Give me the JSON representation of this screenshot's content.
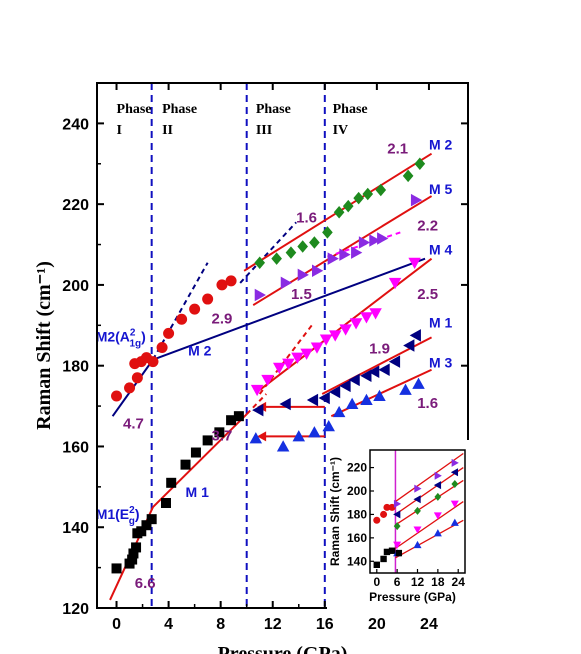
{
  "chart_data": {
    "type": "scatter",
    "xlabel": "Pressure (GPa)",
    "ylabel": "Raman Shift (cm⁻¹)",
    "xlim": [
      -1.5,
      27
    ],
    "ylim": [
      120,
      250
    ],
    "xticks": [
      "0",
      "4",
      "8",
      "12",
      "16",
      "20",
      "24"
    ],
    "yticks": [
      "120",
      "140",
      "160",
      "180",
      "200",
      "220",
      "240"
    ],
    "phase_boundaries": [
      2.7,
      10.0,
      16.0
    ],
    "phases": [
      {
        "name": "Phase",
        "roman": "I",
        "x": 0.0
      },
      {
        "name": "Phase",
        "roman": "II",
        "x": 3.5
      },
      {
        "name": "Phase",
        "roman": "III",
        "x": 10.7
      },
      {
        "name": "Phase",
        "roman": "IV",
        "x": 16.6
      }
    ],
    "series": [
      {
        "name": "M1",
        "marker": "square",
        "color": "#000000",
        "x": [
          0.0,
          1.0,
          1.2,
          1.3,
          1.5,
          1.6,
          1.9,
          2.3,
          2.7,
          3.8,
          4.2,
          5.3,
          6.1,
          7.0,
          7.9,
          8.8,
          9.4
        ],
        "y": [
          129.8,
          131.0,
          132.0,
          133.5,
          135.0,
          138.5,
          139.0,
          140.5,
          142.0,
          146.0,
          151.0,
          155.5,
          158.5,
          161.5,
          163.5,
          166.5,
          167.5
        ]
      },
      {
        "name": "M1",
        "marker": "triangle-left",
        "color": "#000080",
        "x": [
          10.9,
          13.0,
          15.1,
          16.0,
          16.8,
          17.6,
          18.3,
          19.2,
          19.8,
          20.6,
          21.4,
          22.5,
          23.0
        ],
        "y": [
          169.0,
          170.5,
          171.5,
          172.0,
          173.5,
          175.0,
          176.5,
          177.5,
          178.5,
          179.0,
          181.0,
          185.0,
          187.5
        ]
      },
      {
        "name": "M3",
        "marker": "triangle-up",
        "color": "#1530e0",
        "x": [
          10.7,
          12.8,
          14.0,
          15.2,
          16.3,
          17.1,
          18.1,
          19.2,
          20.2,
          22.2,
          23.2
        ],
        "y": [
          162.0,
          160.0,
          162.5,
          163.5,
          165.0,
          168.5,
          170.5,
          171.5,
          172.5,
          174.0,
          175.5
        ]
      },
      {
        "name": "M2",
        "marker": "circle",
        "color": "#e01010",
        "x": [
          0.0,
          1.0,
          1.4,
          1.6,
          1.9,
          2.3,
          2.8,
          3.5,
          4.0,
          5.0,
          6.0,
          7.0,
          8.1,
          8.8
        ],
        "y": [
          172.5,
          174.5,
          180.5,
          177.0,
          181.0,
          182.0,
          181.0,
          184.5,
          188.0,
          191.5,
          194.0,
          196.5,
          200.0,
          201.0
        ]
      },
      {
        "name": "M2",
        "marker": "diamond",
        "color": "#1e8a1e",
        "x": [
          11.0,
          12.3,
          13.4,
          14.3,
          15.2,
          16.2,
          17.1,
          17.8,
          18.6,
          19.3,
          20.3,
          22.4,
          23.3
        ],
        "y": [
          205.5,
          206.5,
          208.0,
          209.5,
          210.5,
          213.0,
          218.0,
          219.5,
          221.5,
          222.5,
          223.5,
          227.0,
          230.0
        ]
      },
      {
        "name": "M5",
        "marker": "triangle-right",
        "color": "#8a2be2",
        "x": [
          11.0,
          13.0,
          14.3,
          15.4,
          16.6,
          17.5,
          18.4,
          19.0,
          19.8,
          20.4,
          23.0
        ],
        "y": [
          197.5,
          200.5,
          202.5,
          203.5,
          206.5,
          207.5,
          208.0,
          210.5,
          211.0,
          211.5,
          221.0
        ]
      },
      {
        "name": "M4",
        "marker": "triangle-down",
        "color": "#ff00ff",
        "x": [
          10.8,
          11.6,
          12.5,
          13.2,
          13.9,
          14.6,
          15.4,
          16.1,
          16.8,
          17.6,
          18.4,
          19.2,
          19.9,
          21.4,
          22.9
        ],
        "y": [
          174.0,
          176.5,
          179.5,
          180.5,
          182.0,
          183.0,
          184.5,
          186.5,
          187.5,
          189.0,
          190.5,
          192.0,
          193.0,
          200.5,
          205.5
        ]
      }
    ],
    "fits": [
      {
        "color": "#e01010",
        "style": "solid",
        "x": [
          -0.5,
          2.8
        ],
        "y": [
          122.0,
          145.0
        ]
      },
      {
        "color": "#e01010",
        "style": "solid",
        "x": [
          2.8,
          10.0
        ],
        "y": [
          145.0,
          168.0
        ]
      },
      {
        "color": "#e01010",
        "style": "dashed",
        "x": [
          10.0,
          11.5
        ],
        "y": [
          168.0,
          173.0
        ]
      },
      {
        "color": "#000080",
        "style": "solid",
        "x": [
          -0.3,
          2.8
        ],
        "y": [
          167.5,
          181.5
        ]
      },
      {
        "color": "#000080",
        "style": "solid",
        "x": [
          2.8,
          23.7
        ],
        "y": [
          181.5,
          206.5
        ]
      },
      {
        "color": "#000080",
        "style": "dashed",
        "x": [
          2.8,
          7.0
        ],
        "y": [
          181.5,
          205.5
        ]
      },
      {
        "color": "#000080",
        "style": "dashed",
        "x": [
          9.5,
          13.8
        ],
        "y": [
          200.5,
          215.5
        ]
      },
      {
        "color": "#e01010",
        "style": "solid",
        "x": [
          9.8,
          24.2
        ],
        "y": [
          203.5,
          232.5
        ]
      },
      {
        "color": "#e01010",
        "style": "solid",
        "x": [
          10.5,
          24.2
        ],
        "y": [
          195.0,
          222.0
        ]
      },
      {
        "color": "#e01010",
        "style": "solid",
        "x": [
          11.0,
          24.2
        ],
        "y": [
          174.0,
          206.5
        ]
      },
      {
        "color": "#e01010",
        "style": "dashed",
        "x": [
          11.0,
          15.0
        ],
        "y": [
          173.0,
          190.0
        ]
      },
      {
        "color": "#ff00ff",
        "style": "dashed",
        "x": [
          16.2,
          21.8
        ],
        "y": [
          207.0,
          213.0
        ]
      },
      {
        "color": "#e01010",
        "style": "solid",
        "x": [
          15.8,
          24.2
        ],
        "y": [
          173.0,
          187.0
        ]
      },
      {
        "color": "#e01010",
        "style": "solid",
        "x": [
          16.5,
          24.2
        ],
        "y": [
          167.5,
          179.0
        ]
      }
    ],
    "arrows": [
      {
        "color": "#e01010",
        "from": [
          16.0,
          169.8
        ],
        "to": [
          10.8,
          169.8
        ]
      },
      {
        "color": "#e01010",
        "from": [
          16.0,
          162.5
        ],
        "to": [
          10.8,
          162.5
        ]
      }
    ],
    "mode_labels": [
      {
        "text": "M 2",
        "x": 24.0,
        "y": 233.5
      },
      {
        "text": "M 5",
        "x": 24.0,
        "y": 222.5
      },
      {
        "text": "M 4",
        "x": 24.0,
        "y": 207.5
      },
      {
        "text": "M 1",
        "x": 24.0,
        "y": 189.5
      },
      {
        "text": "M 3",
        "x": 24.0,
        "y": 179.5
      },
      {
        "text": "M 2",
        "x": 5.5,
        "y": 182.5
      },
      {
        "text": "M 1",
        "x": 5.3,
        "y": 147.5
      }
    ],
    "labels_sub": [
      {
        "main": "M2(A",
        "sup": "2",
        "sub": "1g",
        "close": ")",
        "x": -1.6,
        "y": 186.0
      },
      {
        "main": "M1(E",
        "sup": "2",
        "sub": "g",
        "close": ")",
        "x": -1.6,
        "y": 142.0
      }
    ],
    "slope_labels": [
      {
        "text": "2.1",
        "x": 20.8,
        "y": 232.5
      },
      {
        "text": "1.6",
        "x": 13.8,
        "y": 215.5
      },
      {
        "text": "2.2",
        "x": 23.1,
        "y": 213.5
      },
      {
        "text": "2.9",
        "x": 7.3,
        "y": 190.5
      },
      {
        "text": "1.5",
        "x": 13.4,
        "y": 196.5
      },
      {
        "text": "2.5",
        "x": 23.1,
        "y": 196.5
      },
      {
        "text": "1.9",
        "x": 19.4,
        "y": 183.0
      },
      {
        "text": "4.7",
        "x": 0.5,
        "y": 164.5
      },
      {
        "text": "3.7",
        "x": 7.3,
        "y": 161.5
      },
      {
        "text": "1.6",
        "x": 23.1,
        "y": 169.5
      },
      {
        "text": "6.6",
        "x": 1.4,
        "y": 125.0
      }
    ],
    "inset": {
      "xlabel": "Pressure (GPa)",
      "ylabel": "Raman Shift (cm⁻¹)",
      "xlim": [
        -2,
        26
      ],
      "ylim": [
        130,
        235
      ],
      "xticks": [
        "0",
        "6",
        "12",
        "18",
        "24"
      ],
      "yticks": [
        "140",
        "160",
        "180",
        "200",
        "220"
      ],
      "vline_x": 5.5,
      "series": [
        {
          "marker": "square",
          "color": "#000000",
          "x": [
            0,
            2,
            3,
            4.5
          ],
          "y": [
            137,
            142,
            148,
            149
          ]
        },
        {
          "marker": "circle",
          "color": "#e01010",
          "x": [
            0,
            2,
            3,
            4.5
          ],
          "y": [
            175,
            180,
            186,
            186
          ]
        },
        {
          "marker": "triangle-right",
          "color": "#8a2be2",
          "x": [
            6,
            12,
            18,
            23
          ],
          "y": [
            189,
            202,
            213,
            224
          ]
        },
        {
          "marker": "triangle-left",
          "color": "#000080",
          "x": [
            6,
            12,
            18,
            23
          ],
          "y": [
            180,
            193,
            205,
            216
          ]
        },
        {
          "marker": "diamond",
          "color": "#1e8a1e",
          "x": [
            6,
            12,
            18,
            23
          ],
          "y": [
            170,
            183,
            195,
            206
          ]
        },
        {
          "marker": "triangle-down",
          "color": "#ff00ff",
          "x": [
            6,
            12,
            18,
            23
          ],
          "y": [
            154,
            167,
            179,
            189
          ]
        },
        {
          "marker": "triangle-up",
          "color": "#1530e0",
          "x": [
            6,
            12,
            18,
            23
          ],
          "y": [
            147,
            154,
            164,
            173
          ]
        },
        {
          "marker": "square",
          "color": "#000000",
          "x": [
            6.5
          ],
          "y": [
            147
          ]
        }
      ],
      "fits": [
        {
          "x": [
            5.5,
            25.5
          ],
          "y": [
            191,
            232
          ]
        },
        {
          "x": [
            5.5,
            25.5
          ],
          "y": [
            180,
            220
          ]
        },
        {
          "x": [
            5.5,
            25.5
          ],
          "y": [
            171,
            209
          ]
        },
        {
          "x": [
            5.5,
            25.5
          ],
          "y": [
            151,
            191
          ]
        },
        {
          "x": [
            5.5,
            25.5
          ],
          "y": [
            143,
            175
          ]
        }
      ]
    }
  }
}
